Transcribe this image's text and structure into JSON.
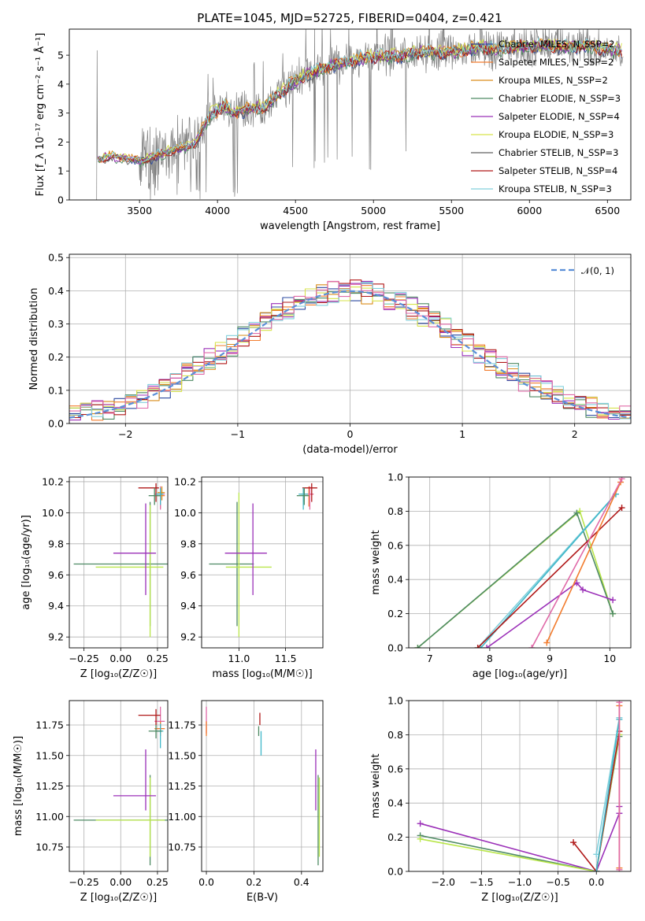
{
  "colors": {
    "chabrier_miles": "#2e4ba0",
    "salpeter_miles": "#f27c2e",
    "kroupa_miles": "#d98c1a",
    "chabrier_elodie": "#4e8a63",
    "salpeter_elodie": "#9b30b8",
    "kroupa_elodie": "#d7e34a",
    "chabrier_stelib": "#606060",
    "salpeter_stelib": "#b01818",
    "kroupa_stelib": "#82d0dc",
    "pink": "#e06aa8",
    "lime": "#b9e64a",
    "cyan": "#3fb7c9",
    "normal": "#5b8fd8",
    "data_gray": "#808080"
  },
  "chart_data": [
    {
      "id": "spectrum",
      "type": "line",
      "title": "PLATE=1045, MJD=52725, FIBERID=0404, z=0.421",
      "xlabel": "wavelength [Angstrom, rest frame]",
      "ylabel": "Flux [f_λ 10⁻¹⁷ erg cm⁻² s⁻¹ Å⁻¹]",
      "xlim": [
        3050,
        6650
      ],
      "ylim": [
        0,
        5.9
      ],
      "xticks": [
        "3500",
        "4000",
        "4500",
        "5000",
        "5500",
        "6000",
        "6500"
      ],
      "yticks": [
        "0",
        "1",
        "2",
        "3",
        "4",
        "5"
      ],
      "legend_position": "top-right",
      "grid": false,
      "continuum": {
        "x": [
          3230,
          3300,
          3400,
          3500,
          3600,
          3700,
          3800,
          3850,
          3900,
          3950,
          4000,
          4050,
          4100,
          4200,
          4300,
          4400,
          4500,
          4600,
          4700,
          4800,
          4900,
          5000,
          5100,
          5200,
          5300,
          5400,
          5500,
          5600,
          5700,
          5800,
          5900,
          6000,
          6100,
          6200,
          6300,
          6400,
          6500,
          6600
        ],
        "y": [
          1.4,
          1.5,
          1.45,
          1.35,
          1.5,
          1.7,
          1.85,
          1.9,
          2.4,
          2.9,
          3.1,
          3.25,
          3.0,
          3.15,
          3.2,
          3.7,
          4.1,
          4.4,
          4.6,
          4.75,
          4.85,
          4.95,
          4.95,
          5.0,
          5.1,
          5.1,
          5.1,
          5.2,
          5.25,
          5.2,
          5.3,
          5.3,
          5.35,
          5.3,
          5.3,
          5.3,
          5.2,
          5.15
        ]
      },
      "series": [
        {
          "name": "Chabrier MILES, N_SSP=2",
          "color_key": "chabrier_miles"
        },
        {
          "name": "Salpeter MILES, N_SSP=2",
          "color_key": "salpeter_miles"
        },
        {
          "name": "Kroupa MILES, N_SSP=2",
          "color_key": "kroupa_miles"
        },
        {
          "name": "Chabrier ELODIE, N_SSP=3",
          "color_key": "chabrier_elodie"
        },
        {
          "name": "Salpeter ELODIE, N_SSP=4",
          "color_key": "salpeter_elodie"
        },
        {
          "name": "Kroupa ELODIE, N_SSP=3",
          "color_key": "kroupa_elodie"
        },
        {
          "name": "Chabrier STELIB, N_SSP=3",
          "color_key": "chabrier_stelib"
        },
        {
          "name": "Salpeter STELIB, N_SSP=4",
          "color_key": "salpeter_stelib"
        },
        {
          "name": "Kroupa STELIB, N_SSP=3",
          "color_key": "kroupa_stelib"
        }
      ]
    },
    {
      "id": "residuals",
      "type": "line",
      "xlabel": "(data-model)/error",
      "ylabel": "Normed distribution",
      "xlim": [
        -2.5,
        2.5
      ],
      "ylim": [
        0,
        0.51
      ],
      "xticks": [
        "−2",
        "−1",
        "0",
        "1",
        "2"
      ],
      "yticks": [
        "0.0",
        "0.1",
        "0.2",
        "0.3",
        "0.4",
        "0.5"
      ],
      "grid": true,
      "legend_position": "top-right",
      "legend": "𝒩(0, 1)",
      "bin_width": 0.1,
      "series_color_keys": [
        "chabrier_miles",
        "salpeter_miles",
        "kroupa_miles",
        "chabrier_elodie",
        "salpeter_elodie",
        "kroupa_elodie",
        "salpeter_stelib",
        "kroupa_stelib",
        "pink"
      ]
    },
    {
      "id": "age_vs_z",
      "type": "scatter",
      "xlabel": "Z [log₁₀(Z/Z☉)]",
      "ylabel": "age  [log₁₀(age/yr)]",
      "xlim": [
        -0.35,
        0.32
      ],
      "ylim": [
        9.13,
        10.23
      ],
      "xticks": [
        "−0.25",
        "0.00",
        "0.25"
      ],
      "yticks": [
        "9.2",
        "9.4",
        "9.6",
        "9.8",
        "10.0",
        "10.2"
      ],
      "grid": true,
      "points": [
        {
          "x": 0.27,
          "y": 10.11,
          "xerr": [
            0.04,
            0.03
          ],
          "yerr": [
            0.08,
            0.05
          ],
          "c": "salpeter_miles"
        },
        {
          "x": 0.27,
          "y": 10.12,
          "xerr": [
            0.04,
            0.03
          ],
          "yerr": [
            0.1,
            0.05
          ],
          "c": "pink"
        },
        {
          "x": 0.24,
          "y": 10.16,
          "xerr": [
            0.12,
            0.02
          ],
          "yerr": [
            0.09,
            0.03
          ],
          "c": "salpeter_stelib"
        },
        {
          "x": 0.28,
          "y": 10.13,
          "xerr": [
            0.03,
            0.02
          ],
          "yerr": [
            0.05,
            0.04
          ],
          "c": "kroupa_miles"
        },
        {
          "x": 0.27,
          "y": 10.12,
          "xerr": [
            0.03,
            0.02
          ],
          "yerr": [
            0.07,
            0.04
          ],
          "c": "cyan"
        },
        {
          "x": 0.23,
          "y": 10.11,
          "xerr": [
            0.04,
            0.04
          ],
          "yerr": [
            0.06,
            0.05
          ],
          "c": "chabrier_elodie"
        },
        {
          "x": 0.2,
          "y": 9.67,
          "xerr": [
            0.52,
            0.12
          ],
          "yerr": [
            0.4,
            0.4
          ],
          "c": "chabrier_elodie"
        },
        {
          "x": 0.2,
          "y": 9.65,
          "xerr": [
            0.37,
            0.09
          ],
          "yerr": [
            0.45,
            0.4
          ],
          "c": "lime"
        },
        {
          "x": 0.17,
          "y": 9.74,
          "xerr": [
            0.22,
            0.07
          ],
          "yerr": [
            0.27,
            0.32
          ],
          "c": "salpeter_elodie"
        }
      ]
    },
    {
      "id": "age_vs_mass",
      "type": "scatter",
      "xlabel": "mass [log₁₀(M/M☉)]",
      "ylabel": "",
      "xlim": [
        10.6,
        11.9
      ],
      "ylim": [
        9.13,
        10.23
      ],
      "xticks": [
        "11.0",
        "11.5"
      ],
      "yticks": [
        "9.2",
        "9.4",
        "9.6",
        "9.8",
        "10.0",
        "10.2"
      ],
      "grid": true,
      "points": [
        {
          "x": 11.75,
          "y": 10.12,
          "xerr": [
            0.05,
            0.05
          ],
          "yerr": [
            0.08,
            0.05
          ],
          "c": "salpeter_miles"
        },
        {
          "x": 11.76,
          "y": 10.12,
          "xerr": [
            0.04,
            0.04
          ],
          "yerr": [
            0.1,
            0.05
          ],
          "c": "pink"
        },
        {
          "x": 11.78,
          "y": 10.16,
          "xerr": [
            0.1,
            0.06
          ],
          "yerr": [
            0.09,
            0.03
          ],
          "c": "salpeter_stelib"
        },
        {
          "x": 11.7,
          "y": 10.12,
          "xerr": [
            0.04,
            0.04
          ],
          "yerr": [
            0.05,
            0.04
          ],
          "c": "kroupa_miles"
        },
        {
          "x": 11.69,
          "y": 10.12,
          "xerr": [
            0.05,
            0.05
          ],
          "yerr": [
            0.1,
            0.04
          ],
          "c": "cyan"
        },
        {
          "x": 11.7,
          "y": 10.11,
          "xerr": [
            0.08,
            0.05
          ],
          "yerr": [
            0.06,
            0.05
          ],
          "c": "chabrier_elodie"
        },
        {
          "x": 10.98,
          "y": 9.67,
          "xerr": [
            0.3,
            0.18
          ],
          "yerr": [
            0.4,
            0.4
          ],
          "c": "chabrier_elodie"
        },
        {
          "x": 11.0,
          "y": 9.65,
          "xerr": [
            0.14,
            0.35
          ],
          "yerr": [
            0.45,
            0.48
          ],
          "c": "lime"
        },
        {
          "x": 11.15,
          "y": 9.74,
          "xerr": [
            0.3,
            0.15
          ],
          "yerr": [
            0.27,
            0.32
          ],
          "c": "salpeter_elodie"
        }
      ]
    },
    {
      "id": "weight_vs_age",
      "type": "line",
      "xlabel": "age  [log₁₀(age/yr)]",
      "ylabel": "mass weight",
      "xlim": [
        6.65,
        10.35
      ],
      "ylim": [
        0,
        1.0
      ],
      "xticks": [
        "7",
        "8",
        "9",
        "10"
      ],
      "yticks": [
        "0.0",
        "0.2",
        "0.4",
        "0.6",
        "0.8",
        "1.0"
      ],
      "grid": true,
      "series": [
        {
          "c": "lime",
          "x": [
            6.8,
            9.5,
            10.05
          ],
          "y": [
            0.0,
            0.8,
            0.2
          ]
        },
        {
          "c": "chabrier_elodie",
          "x": [
            6.8,
            9.45,
            10.05
          ],
          "y": [
            0.0,
            0.79,
            0.2
          ]
        },
        {
          "c": "kroupa_stelib",
          "x": [
            7.8,
            10.1
          ],
          "y": [
            0.0,
            0.9
          ]
        },
        {
          "c": "cyan",
          "x": [
            7.85,
            10.1
          ],
          "y": [
            0.0,
            0.9
          ]
        },
        {
          "c": "salpeter_stelib",
          "x": [
            7.8,
            10.2
          ],
          "y": [
            0.0,
            0.82
          ]
        },
        {
          "c": "salpeter_elodie",
          "x": [
            7.95,
            9.45,
            9.55,
            10.05
          ],
          "y": [
            0.0,
            0.38,
            0.34,
            0.28
          ]
        },
        {
          "c": "salpeter_miles",
          "x": [
            8.95,
            10.18
          ],
          "y": [
            0.03,
            0.97
          ]
        },
        {
          "c": "pink",
          "x": [
            8.7,
            10.2
          ],
          "y": [
            0.0,
            0.99
          ]
        }
      ]
    },
    {
      "id": "mass_vs_z",
      "type": "scatter",
      "xlabel": "Z [log₁₀(Z/Z☉)]",
      "ylabel": "mass [log₁₀(M/M☉)]",
      "xlim": [
        -0.35,
        0.32
      ],
      "ylim": [
        10.55,
        11.95
      ],
      "xticks": [
        "−0.25",
        "0.00",
        "0.25"
      ],
      "yticks": [
        "10.75",
        "11.00",
        "11.25",
        "11.50",
        "11.75"
      ],
      "grid": true,
      "points": [
        {
          "x": 0.27,
          "y": 11.78,
          "xerr": [
            0.04,
            0.03
          ],
          "yerr": [
            0.1,
            0.12
          ],
          "c": "pink"
        },
        {
          "x": 0.27,
          "y": 11.72,
          "xerr": [
            0.04,
            0.03
          ],
          "yerr": [
            0.06,
            0.06
          ],
          "c": "salpeter_miles"
        },
        {
          "x": 0.24,
          "y": 11.83,
          "xerr": [
            0.12,
            0.03
          ],
          "yerr": [
            0.08,
            0.05
          ],
          "c": "salpeter_stelib"
        },
        {
          "x": 0.27,
          "y": 11.7,
          "xerr": [
            0.03,
            0.02
          ],
          "yerr": [
            0.14,
            0.06
          ],
          "c": "cyan"
        },
        {
          "x": 0.24,
          "y": 11.7,
          "xerr": [
            0.05,
            0.04
          ],
          "yerr": [
            0.06,
            0.05
          ],
          "c": "chabrier_elodie"
        },
        {
          "x": 0.2,
          "y": 10.97,
          "xerr": [
            0.52,
            0.12
          ],
          "yerr": [
            0.37,
            0.37
          ],
          "c": "chabrier_elodie"
        },
        {
          "x": 0.2,
          "y": 10.97,
          "xerr": [
            0.37,
            0.1
          ],
          "yerr": [
            0.3,
            0.35
          ],
          "c": "lime"
        },
        {
          "x": 0.17,
          "y": 11.17,
          "xerr": [
            0.22,
            0.07
          ],
          "yerr": [
            0.12,
            0.38
          ],
          "c": "salpeter_elodie"
        }
      ]
    },
    {
      "id": "mass_vs_ebv",
      "type": "scatter",
      "xlabel": "E(B-V)",
      "ylabel": "",
      "xlim": [
        -0.02,
        0.49
      ],
      "ylim": [
        10.55,
        11.95
      ],
      "xticks": [
        "0.0",
        "0.2",
        "0.4"
      ],
      "yticks": [
        "10.75",
        "11.00",
        "11.25",
        "11.50",
        "11.75"
      ],
      "grid": true,
      "points": [
        {
          "x": 0.0,
          "y": 11.78,
          "yerr": [
            0.1,
            0.12
          ],
          "c": "pink"
        },
        {
          "x": 0.0,
          "y": 11.72,
          "yerr": [
            0.06,
            0.06
          ],
          "c": "salpeter_miles"
        },
        {
          "x": 0.225,
          "y": 11.8,
          "yerr": [
            0.05,
            0.05
          ],
          "c": "salpeter_stelib"
        },
        {
          "x": 0.23,
          "y": 11.65,
          "yerr": [
            0.15,
            0.05
          ],
          "c": "cyan"
        },
        {
          "x": 0.22,
          "y": 11.7,
          "yerr": [
            0.04,
            0.04
          ],
          "c": "chabrier_elodie"
        },
        {
          "x": 0.47,
          "y": 10.97,
          "yerr": [
            0.37,
            0.37
          ],
          "c": "chabrier_elodie"
        },
        {
          "x": 0.475,
          "y": 10.97,
          "yerr": [
            0.3,
            0.35
          ],
          "c": "lime"
        },
        {
          "x": 0.46,
          "y": 11.25,
          "yerr": [
            0.2,
            0.3
          ],
          "c": "salpeter_elodie"
        }
      ]
    },
    {
      "id": "weight_vs_z",
      "type": "line",
      "xlabel": "Z [log₁₀(Z/Z☉)]",
      "ylabel": "mass weight",
      "xlim": [
        -2.45,
        0.45
      ],
      "ylim": [
        0,
        1.0
      ],
      "xticks": [
        "−2.0",
        "−1.5",
        "−1.0",
        "−0.5",
        "0.0"
      ],
      "yticks": [
        "0.0",
        "0.2",
        "0.4",
        "0.6",
        "0.8",
        "1.0"
      ],
      "grid": true,
      "series": [
        {
          "c": "salpeter_elodie",
          "x": [
            -2.3,
            0.0,
            0.3,
            0.3
          ],
          "y": [
            0.28,
            0.0,
            0.34,
            0.38
          ]
        },
        {
          "c": "chabrier_elodie",
          "x": [
            -2.3,
            0.0,
            0.3
          ],
          "y": [
            0.21,
            0.0,
            0.79
          ]
        },
        {
          "c": "lime",
          "x": [
            -2.3,
            0.0,
            0.3
          ],
          "y": [
            0.19,
            0.0,
            0.8
          ]
        },
        {
          "c": "salpeter_stelib",
          "x": [
            -0.3,
            0.0,
            0.3
          ],
          "y": [
            0.17,
            0.0,
            0.82
          ]
        },
        {
          "c": "kroupa_stelib",
          "x": [
            0.0,
            0.3
          ],
          "y": [
            0.1,
            0.9
          ]
        },
        {
          "c": "cyan",
          "x": [
            0.0,
            0.3
          ],
          "y": [
            0.0,
            0.89
          ]
        },
        {
          "c": "salpeter_miles",
          "x": [
            0.3,
            0.3
          ],
          "y": [
            0.02,
            0.97
          ]
        },
        {
          "c": "pink",
          "x": [
            0.3,
            0.3
          ],
          "y": [
            0.01,
            0.99
          ]
        }
      ]
    }
  ]
}
